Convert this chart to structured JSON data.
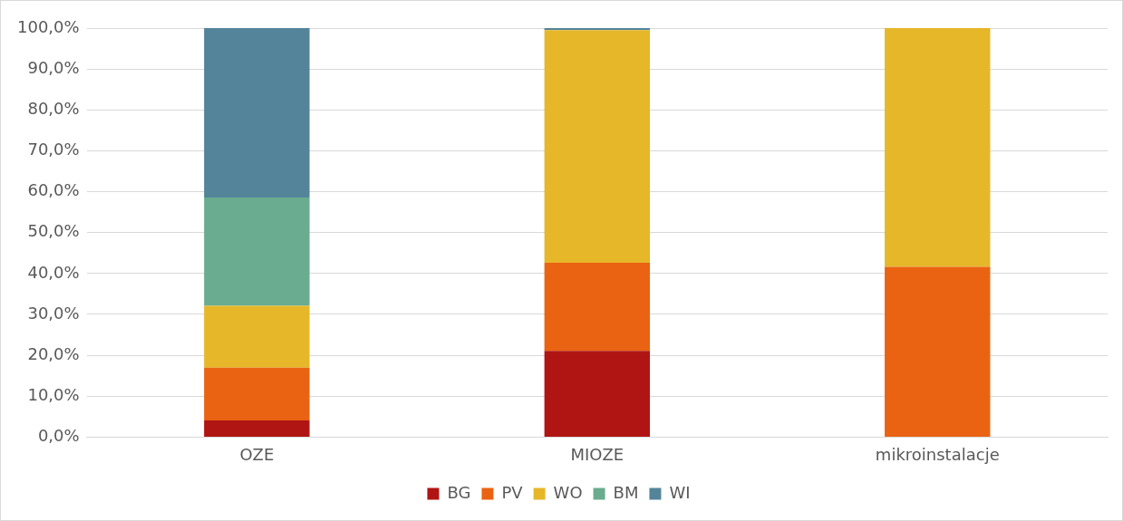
{
  "chart_data": {
    "type": "bar",
    "stacked": true,
    "categories": [
      "OZE",
      "MIOZE",
      "mikroinstalacje"
    ],
    "series": [
      {
        "name": "BG",
        "color": "#b01513",
        "values": [
          4.1,
          21.1,
          0
        ]
      },
      {
        "name": "PV",
        "color": "#ea6312",
        "values": [
          12.9,
          21.5,
          41.6
        ]
      },
      {
        "name": "WO",
        "color": "#e6b729",
        "values": [
          15.1,
          56.9,
          58.4
        ]
      },
      {
        "name": "BM",
        "color": "#6aac90",
        "values": [
          26.5,
          0,
          0
        ]
      },
      {
        "name": "WI",
        "color": "#54849a",
        "values": [
          41.4,
          0.5,
          0
        ]
      }
    ],
    "ylim": [
      0,
      100
    ],
    "yticks": [
      {
        "value": 0,
        "label": "0,0%"
      },
      {
        "value": 10,
        "label": "10,0%"
      },
      {
        "value": 20,
        "label": "20,0%"
      },
      {
        "value": 30,
        "label": "30,0%"
      },
      {
        "value": 40,
        "label": "40,0%"
      },
      {
        "value": 50,
        "label": "50,0%"
      },
      {
        "value": 60,
        "label": "60,0%"
      },
      {
        "value": 70,
        "label": "70,0%"
      },
      {
        "value": 80,
        "label": "80,0%"
      },
      {
        "value": 90,
        "label": "90,0%"
      },
      {
        "value": 100,
        "label": "100,0%"
      }
    ],
    "grid": "y",
    "legend": "bottom"
  }
}
